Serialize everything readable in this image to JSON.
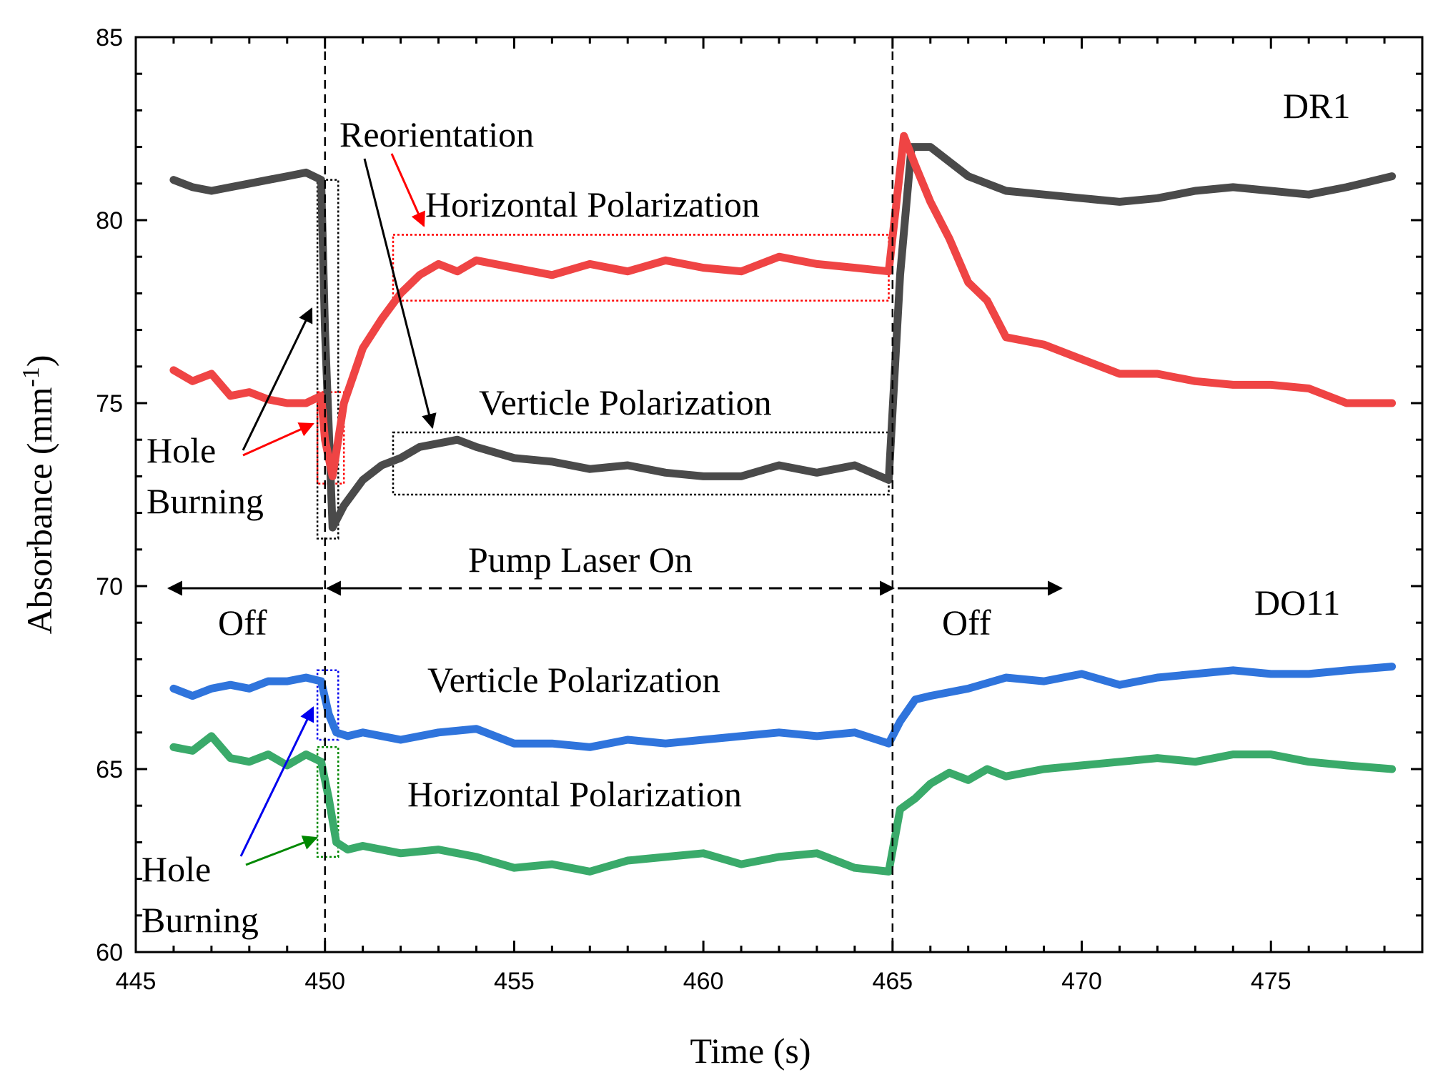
{
  "chart_data": {
    "type": "line",
    "xlabel": "Time (s)",
    "ylabel_main": "Absorbance (mm",
    "ylabel_sup": "-1",
    "ylabel_end": ")",
    "xlim": [
      445,
      479
    ],
    "ylim": [
      60,
      85
    ],
    "xticks": [
      445,
      450,
      455,
      460,
      465,
      470,
      475
    ],
    "yticks": [
      60,
      65,
      70,
      75,
      80,
      85
    ],
    "grid": false,
    "legend": "none",
    "colors": {
      "dr1_vertical": "#4a4a4a",
      "dr1_horizontal": "#ef4444",
      "do11_vertical": "#2f74dc",
      "do11_horizontal": "#3aaa6a",
      "arrow_black": "#000000",
      "arrow_red": "#ff0000",
      "arrow_blue": "#0000ee",
      "arrow_green": "#008800"
    },
    "series": [
      {
        "key": "dr1_vertical",
        "x": [
          446,
          446.5,
          447,
          447.5,
          448,
          448.5,
          449,
          449.5,
          449.9,
          450.0,
          450.2,
          450.5,
          451,
          451.5,
          452,
          452.5,
          453,
          453.5,
          454,
          455,
          456,
          457,
          458,
          459,
          460,
          461,
          462,
          463,
          464,
          464.9,
          465.2,
          465.5,
          466,
          466.5,
          467,
          468,
          469,
          470,
          471,
          472,
          473,
          474,
          475,
          476,
          477,
          478.2
        ],
        "y": [
          81.1,
          80.9,
          80.8,
          80.9,
          81.0,
          81.1,
          81.2,
          81.3,
          81.1,
          77.0,
          71.6,
          72.2,
          72.9,
          73.3,
          73.5,
          73.8,
          73.9,
          74.0,
          73.8,
          73.5,
          73.4,
          73.2,
          73.3,
          73.1,
          73.0,
          73.0,
          73.3,
          73.1,
          73.3,
          72.9,
          78.5,
          82.0,
          82.0,
          81.6,
          81.2,
          80.8,
          80.7,
          80.6,
          80.5,
          80.6,
          80.8,
          80.9,
          80.8,
          80.7,
          80.9,
          81.2
        ]
      },
      {
        "key": "dr1_horizontal",
        "x": [
          446,
          446.5,
          447,
          447.5,
          448,
          448.5,
          449,
          449.5,
          449.9,
          450.0,
          450.2,
          450.5,
          451,
          451.5,
          452,
          452.5,
          453,
          453.5,
          454,
          455,
          456,
          457,
          458,
          459,
          460,
          461,
          462,
          463,
          464,
          464.9,
          465.3,
          465.6,
          466,
          466.5,
          467,
          467.5,
          468,
          469,
          470,
          471,
          472,
          473,
          474,
          475,
          476,
          477,
          478.2
        ],
        "y": [
          75.9,
          75.6,
          75.8,
          75.2,
          75.3,
          75.1,
          75.0,
          75.0,
          75.2,
          74.0,
          73.0,
          75.0,
          76.5,
          77.3,
          78.0,
          78.5,
          78.8,
          78.6,
          78.9,
          78.7,
          78.5,
          78.8,
          78.6,
          78.9,
          78.7,
          78.6,
          79.0,
          78.8,
          78.7,
          78.6,
          82.3,
          81.5,
          80.5,
          79.5,
          78.3,
          77.8,
          76.8,
          76.6,
          76.2,
          75.8,
          75.8,
          75.6,
          75.5,
          75.5,
          75.4,
          75.0,
          75.0
        ]
      },
      {
        "key": "do11_vertical",
        "x": [
          446,
          446.5,
          447,
          447.5,
          448,
          448.5,
          449,
          449.5,
          449.9,
          450.1,
          450.3,
          450.6,
          451,
          452,
          453,
          454,
          455,
          456,
          457,
          458,
          459,
          460,
          461,
          462,
          463,
          464,
          464.9,
          465.2,
          465.6,
          466,
          467,
          468,
          469,
          470,
          471,
          472,
          473,
          474,
          475,
          476,
          477,
          478.2
        ],
        "y": [
          67.2,
          67.0,
          67.2,
          67.3,
          67.2,
          67.4,
          67.4,
          67.5,
          67.4,
          66.5,
          66.0,
          65.9,
          66.0,
          65.8,
          66.0,
          66.1,
          65.7,
          65.7,
          65.6,
          65.8,
          65.7,
          65.8,
          65.9,
          66.0,
          65.9,
          66.0,
          65.7,
          66.3,
          66.9,
          67.0,
          67.2,
          67.5,
          67.4,
          67.6,
          67.3,
          67.5,
          67.6,
          67.7,
          67.6,
          67.6,
          67.7,
          67.8
        ]
      },
      {
        "key": "do11_horizontal",
        "x": [
          446,
          446.5,
          447,
          447.5,
          448,
          448.5,
          449,
          449.5,
          449.9,
          450.1,
          450.3,
          450.6,
          451,
          452,
          453,
          454,
          455,
          456,
          457,
          458,
          459,
          460,
          461,
          462,
          463,
          464,
          464.9,
          465.2,
          465.6,
          466,
          466.5,
          467,
          467.5,
          468,
          469,
          470,
          471,
          472,
          473,
          474,
          475,
          476,
          477,
          478.2
        ],
        "y": [
          65.6,
          65.5,
          65.9,
          65.3,
          65.2,
          65.4,
          65.1,
          65.4,
          65.2,
          64.2,
          63.0,
          62.8,
          62.9,
          62.7,
          62.8,
          62.6,
          62.3,
          62.4,
          62.2,
          62.5,
          62.6,
          62.7,
          62.4,
          62.6,
          62.7,
          62.3,
          62.2,
          63.9,
          64.2,
          64.6,
          64.9,
          64.7,
          65.0,
          64.8,
          65.0,
          65.1,
          65.2,
          65.3,
          65.2,
          65.4,
          65.4,
          65.2,
          65.1,
          65.0
        ]
      }
    ],
    "vlines": [
      450,
      465
    ],
    "annotations": {
      "dr1": "DR1",
      "do11": "DO11",
      "reorientation": "Reorientation",
      "hpol_top": "Horizontal Polarization",
      "vpol_top": "Verticle Polarization",
      "hole_top_1": "Hole",
      "hole_top_2": "Burning",
      "pump": "Pump Laser On",
      "off_left": "Off",
      "off_right": "Off",
      "vpol_bottom": "Verticle Polarization",
      "hpol_bottom": "Horizontal Polarization",
      "hole_bot_1": "Hole",
      "hole_bot_2": "Burning"
    },
    "boxes": [
      {
        "key": "box_dr1_v_hole",
        "x": [
          449.8,
          450.35
        ],
        "y": [
          71.3,
          81.1
        ],
        "color": "#000000",
        "dash": "dotted"
      },
      {
        "key": "box_dr1_h_hole",
        "x": [
          449.8,
          450.5
        ],
        "y": [
          72.8,
          75.3
        ],
        "color": "#ff0000",
        "dash": "dotted"
      },
      {
        "key": "box_dr1_h_plateau",
        "x": [
          451.8,
          464.9
        ],
        "y": [
          77.8,
          79.6
        ],
        "color": "#ff0000",
        "dash": "dotted"
      },
      {
        "key": "box_dr1_v_plateau",
        "x": [
          451.8,
          464.9
        ],
        "y": [
          72.5,
          74.2
        ],
        "color": "#000000",
        "dash": "dotted"
      },
      {
        "key": "box_do11_v_hole",
        "x": [
          449.8,
          450.35
        ],
        "y": [
          65.8,
          67.7
        ],
        "color": "#0000ee",
        "dash": "dotted"
      },
      {
        "key": "box_do11_h_hole",
        "x": [
          449.8,
          450.35
        ],
        "y": [
          62.6,
          65.6
        ],
        "color": "#008800",
        "dash": "dotted"
      }
    ]
  }
}
